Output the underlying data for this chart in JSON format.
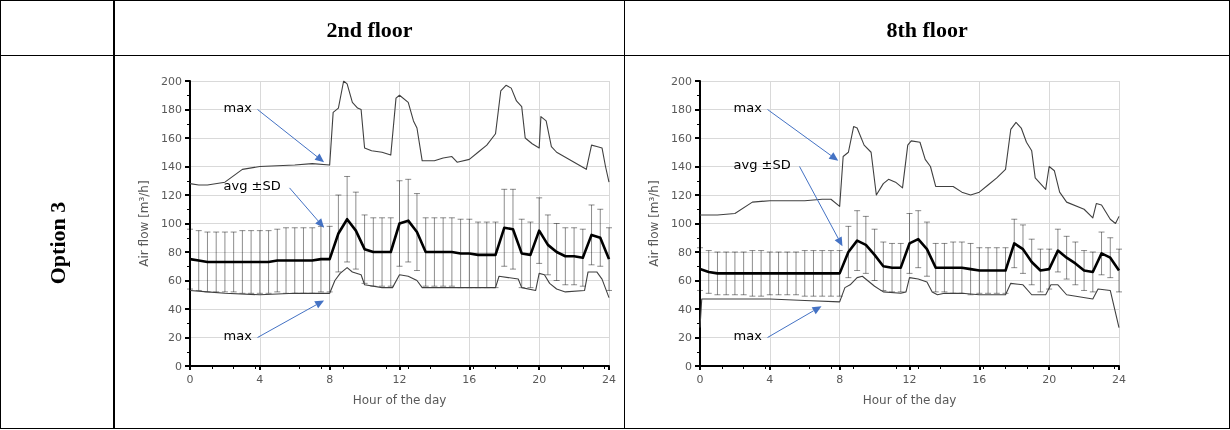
{
  "chart_data": [
    {
      "type": "line",
      "title": "2nd floor",
      "xlabel": "Hour of the day",
      "ylabel": "Air flow [m³/h]",
      "xlim": [
        0,
        24
      ],
      "xticks": [
        0,
        4,
        8,
        12,
        16,
        20,
        24
      ],
      "ylim": [
        0,
        200
      ],
      "yticks": [
        0,
        20,
        40,
        60,
        80,
        100,
        120,
        140,
        160,
        180,
        200
      ],
      "grid": true,
      "marker": "none",
      "subtitle": "Option 3",
      "annotations": [
        "max",
        "avg ±SD",
        "max"
      ],
      "series": [
        {
          "color": "#404040",
          "x": [
            0,
            0.5,
            1,
            2,
            3,
            4,
            6,
            7,
            8,
            8.2,
            8.5,
            8.8,
            9,
            9.3,
            9.6,
            9.8,
            10,
            10.4,
            11,
            11.5,
            11.8,
            12,
            12.5,
            12.8,
            13,
            13.3,
            14,
            14.5,
            15,
            15.3,
            16,
            16.5,
            17,
            17.5,
            17.8,
            18.1,
            18.4,
            18.7,
            19,
            19.2,
            19.6,
            20,
            20.1,
            20.4,
            20.7,
            21,
            22,
            22.7,
            23,
            23.3,
            23.6,
            23.8,
            24
          ],
          "values": [
            128,
            127,
            127,
            129,
            138,
            140,
            141,
            142,
            141,
            178,
            181,
            200,
            198,
            185,
            181,
            180,
            153,
            151,
            150,
            148,
            188,
            190,
            185,
            172,
            167,
            144,
            144,
            146,
            147,
            143,
            145,
            150,
            155,
            163,
            193,
            197,
            195,
            186,
            182,
            160,
            156,
            153,
            175,
            172,
            154,
            150,
            143,
            138,
            155,
            154,
            153,
            140,
            129
          ]
        },
        {
          "color": "#404040",
          "x": [
            0,
            1,
            2,
            4,
            6,
            8,
            8.3,
            8.6,
            9,
            9.3,
            9.8,
            10,
            11,
            11.6,
            12,
            12.5,
            13,
            13.3,
            16,
            17.5,
            17.7,
            18.8,
            19,
            19.8,
            20,
            20.3,
            20.6,
            21,
            21.5,
            22.6,
            22.8,
            23.3,
            23.6,
            24
          ],
          "values": [
            53,
            52,
            51,
            50,
            51,
            51,
            60,
            65,
            69,
            66,
            64,
            57,
            55,
            55,
            64,
            63,
            60,
            55,
            55,
            55,
            63,
            61,
            55,
            53,
            65,
            64,
            58,
            54,
            52,
            53,
            66,
            66,
            61,
            48
          ]
        },
        {
          "color": "#000000",
          "x": [
            0,
            0.5,
            1,
            1.5,
            2,
            2.5,
            3,
            3.5,
            4,
            4.5,
            5,
            5.5,
            6,
            6.5,
            7,
            7.5,
            8,
            8.5,
            9,
            9.5,
            10,
            10.5,
            11,
            11.5,
            12,
            12.5,
            13,
            13.5,
            14,
            14.5,
            15,
            15.5,
            16,
            16.5,
            17,
            17.5,
            18,
            18.5,
            19,
            19.5,
            20,
            20.5,
            21,
            21.5,
            22,
            22.5,
            23,
            23.5,
            24
          ],
          "values": [
            75,
            74,
            73,
            73,
            73,
            73,
            73,
            73,
            73,
            73,
            74,
            74,
            74,
            74,
            74,
            75,
            75,
            93,
            103,
            95,
            82,
            80,
            80,
            80,
            100,
            102,
            94,
            80,
            80,
            80,
            80,
            79,
            79,
            78,
            78,
            78,
            97,
            96,
            79,
            78,
            95,
            85,
            80,
            77,
            77,
            76,
            92,
            90,
            75
          ],
          "errors": [
            21,
            21,
            21,
            21,
            21,
            21,
            22,
            22,
            22,
            22,
            22,
            23,
            23,
            23,
            23,
            23,
            23,
            27,
            30,
            27,
            24,
            24,
            24,
            24,
            30,
            29,
            27,
            24,
            24,
            24,
            24,
            24,
            24,
            23,
            23,
            23,
            27,
            28,
            24,
            23,
            23,
            21,
            20,
            20,
            20,
            20,
            21,
            20,
            22
          ]
        }
      ]
    },
    {
      "type": "line",
      "title": "8th floor",
      "xlabel": "Hour of the day",
      "ylabel": "Air flow [m³/h]",
      "xlim": [
        0,
        24
      ],
      "xticks": [
        0,
        4,
        8,
        12,
        16,
        20,
        24
      ],
      "ylim": [
        0,
        200
      ],
      "yticks": [
        0,
        20,
        40,
        60,
        80,
        100,
        120,
        140,
        160,
        180,
        200
      ],
      "grid": true,
      "marker": "none",
      "annotations": [
        "max",
        "avg ±SD",
        "max"
      ],
      "series": [
        {
          "color": "#404040",
          "x": [
            0,
            1,
            2,
            3,
            4,
            6,
            7,
            7.5,
            8,
            8.2,
            8.5,
            8.8,
            9,
            9.4,
            9.8,
            10.1,
            10.5,
            10.8,
            11.2,
            11.6,
            11.9,
            12.1,
            12.6,
            12.9,
            13.2,
            13.5,
            14.5,
            15,
            15.5,
            16,
            16.5,
            17,
            17.5,
            17.8,
            18.1,
            18.4,
            18.7,
            19,
            19.2,
            19.8,
            20,
            20.3,
            20.6,
            21,
            22,
            22.5,
            22.7,
            23,
            23.5,
            23.8,
            24
          ],
          "values": [
            106,
            106,
            107,
            115,
            116,
            116,
            117,
            117,
            112,
            147,
            150,
            168,
            167,
            155,
            150,
            120,
            128,
            131,
            129,
            125,
            155,
            158,
            157,
            145,
            140,
            126,
            126,
            122,
            120,
            122,
            127,
            132,
            138,
            166,
            171,
            167,
            157,
            151,
            132,
            124,
            140,
            137,
            122,
            115,
            110,
            104,
            114,
            113,
            103,
            100,
            105
          ]
        },
        {
          "color": "#404040",
          "x": [
            0,
            0.1,
            2,
            4,
            6,
            8,
            8.3,
            8.6,
            9,
            9.3,
            10,
            10.5,
            11.5,
            11.8,
            12,
            12.5,
            13,
            13.3,
            13.6,
            14,
            15,
            16,
            17.5,
            17.8,
            18.5,
            19,
            19.8,
            20.1,
            20.5,
            21,
            22.5,
            22.8,
            23.5,
            24
          ],
          "values": [
            27,
            47,
            47,
            47,
            46,
            45,
            55,
            57,
            62,
            63,
            56,
            52,
            51,
            52,
            62,
            61,
            59,
            52,
            50,
            51,
            51,
            50,
            50,
            58,
            57,
            50,
            50,
            57,
            57,
            50,
            47,
            54,
            53,
            27
          ]
        },
        {
          "color": "#000000",
          "x": [
            0,
            0.5,
            1,
            1.5,
            2,
            2.5,
            3,
            3.5,
            4,
            4.5,
            5,
            5.5,
            6,
            6.5,
            7,
            7.5,
            8,
            8.5,
            9,
            9.5,
            10,
            10.5,
            11,
            11.5,
            12,
            12.5,
            13,
            13.5,
            14,
            14.5,
            15,
            15.5,
            16,
            16.5,
            17,
            17.5,
            18,
            18.5,
            19,
            19.5,
            20,
            20.5,
            21,
            21.5,
            22,
            22.5,
            23,
            23.5,
            24
          ],
          "values": [
            68,
            66,
            65,
            65,
            65,
            65,
            65,
            65,
            65,
            65,
            65,
            65,
            65,
            65,
            65,
            65,
            65,
            80,
            88,
            85,
            78,
            70,
            69,
            69,
            86,
            89,
            82,
            69,
            69,
            69,
            69,
            68,
            67,
            67,
            67,
            67,
            86,
            82,
            73,
            67,
            68,
            81,
            76,
            72,
            67,
            66,
            79,
            76,
            67
          ],
          "errors": [
            15,
            15,
            15,
            15,
            15,
            15,
            16,
            16,
            15,
            15,
            15,
            15,
            16,
            16,
            16,
            16,
            16,
            18,
            21,
            20,
            18,
            17,
            17,
            17,
            21,
            20,
            19,
            17,
            17,
            18,
            18,
            18,
            16,
            16,
            16,
            16,
            17,
            17,
            16,
            15,
            14,
            15,
            15,
            15,
            14,
            14,
            15,
            14,
            15
          ]
        }
      ]
    }
  ]
}
